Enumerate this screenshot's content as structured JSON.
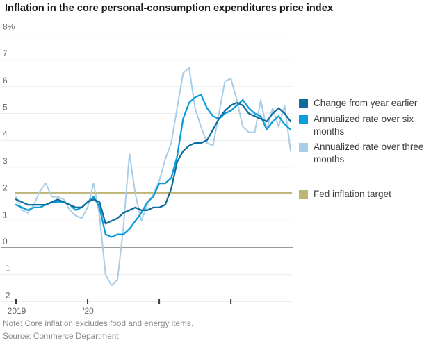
{
  "title": "Inflation in the core personal-consumption expenditures price index",
  "note": "Note: Core inflation excludes food and energy items.",
  "source": "Source: Commerce Department",
  "colors": {
    "dark_blue": "#0c6d9e",
    "medium_blue": "#099dd9",
    "light_blue": "#a8cde8",
    "khaki": "#bdb476",
    "gridline": "#ebebeb",
    "zero_line": "#999999",
    "axis_text": "#666666",
    "tick_mark": "#3a3a3a"
  },
  "legend": {
    "items": [
      {
        "label": "Change from year earlier",
        "color": "#0c6d9e"
      },
      {
        "label": "Annualized rate over six months",
        "color": "#099dd9"
      },
      {
        "label": "Annualized rate over three months",
        "color": "#a8cde8"
      },
      {
        "label": "Fed inflation target",
        "color": "#bdb476"
      }
    ]
  },
  "chart_data": {
    "type": "line",
    "title": "Inflation in the core personal-consumption expenditures price index",
    "x_start": "Jan 2019",
    "x_end": "Nov 2022",
    "months": 47,
    "grid": true,
    "legend_position": "right",
    "ylim": [
      -2,
      8
    ],
    "y_ticks": [
      {
        "value": 8,
        "label": "8%"
      },
      {
        "value": 7,
        "label": "7"
      },
      {
        "value": 6,
        "label": "6"
      },
      {
        "value": 5,
        "label": "5"
      },
      {
        "value": 4,
        "label": "4"
      },
      {
        "value": 3,
        "label": "3"
      },
      {
        "value": 2,
        "label": "2"
      },
      {
        "value": 1,
        "label": "1"
      },
      {
        "value": 0,
        "label": "0"
      },
      {
        "value": -1,
        "label": "-1"
      },
      {
        "value": -2,
        "label": "-2"
      }
    ],
    "x_ticks": [
      {
        "label": "2019",
        "month_index": 0
      },
      {
        "label": "'20",
        "month_index": 12
      },
      {
        "label": "",
        "month_index": 24
      },
      {
        "label": "",
        "month_index": 36
      }
    ],
    "reference_line": {
      "label": "Fed inflation target",
      "value": 2,
      "color": "#bdb476"
    },
    "series": [
      {
        "name": "Change from year earlier",
        "color": "#0c6d9e",
        "values": [
          1.8,
          1.7,
          1.6,
          1.6,
          1.6,
          1.6,
          1.7,
          1.8,
          1.7,
          1.6,
          1.5,
          1.5,
          1.7,
          1.8,
          1.7,
          0.9,
          1.0,
          1.1,
          1.3,
          1.4,
          1.5,
          1.4,
          1.4,
          1.5,
          1.5,
          1.6,
          2.2,
          3.2,
          3.6,
          3.8,
          3.9,
          3.9,
          4.0,
          4.4,
          4.8,
          5.1,
          5.3,
          5.4,
          5.3,
          5.0,
          4.9,
          4.8,
          4.7,
          5.0,
          5.2,
          5.0,
          4.7
        ]
      },
      {
        "name": "Annualized rate over six months",
        "color": "#099dd9",
        "values": [
          1.6,
          1.5,
          1.4,
          1.5,
          1.5,
          1.6,
          1.7,
          1.7,
          1.7,
          1.6,
          1.4,
          1.5,
          1.7,
          1.9,
          1.5,
          0.5,
          0.4,
          0.5,
          0.5,
          0.7,
          1.0,
          1.3,
          1.7,
          1.9,
          2.4,
          2.4,
          2.6,
          3.4,
          4.8,
          5.4,
          5.6,
          5.7,
          5.2,
          4.9,
          4.8,
          5.0,
          5.1,
          5.3,
          5.5,
          5.2,
          5.0,
          4.9,
          4.4,
          4.7,
          4.9,
          4.6,
          4.4
        ]
      },
      {
        "name": "Annualized rate over three months",
        "color": "#a8cde8",
        "values": [
          1.9,
          1.4,
          1.3,
          1.6,
          2.1,
          2.4,
          1.9,
          1.9,
          1.8,
          1.4,
          1.2,
          1.1,
          1.5,
          2.4,
          1.2,
          -1.0,
          -1.4,
          -1.2,
          0.8,
          3.5,
          2.0,
          1.0,
          1.6,
          2.0,
          2.5,
          3.3,
          3.9,
          5.2,
          6.5,
          6.7,
          5.2,
          4.5,
          3.9,
          3.8,
          5.0,
          6.2,
          6.3,
          5.5,
          4.5,
          4.3,
          4.3,
          5.5,
          4.4,
          5.2,
          4.5,
          5.3,
          3.6
        ]
      }
    ]
  }
}
